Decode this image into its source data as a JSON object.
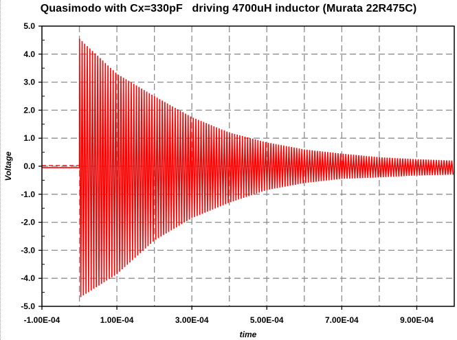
{
  "chart_data": {
    "type": "line",
    "title": "Quasimodo with Cx=330pF   driving 4700uH inductor (Murata 22R475C)",
    "xlabel": "time",
    "ylabel": "Voltage",
    "xlim": [
      -0.0001,
      0.001
    ],
    "ylim": [
      -5.0,
      5.0
    ],
    "x_ticks": [
      -0.0001,
      0.0001,
      0.0003,
      0.0005,
      0.0007,
      0.0009
    ],
    "x_tick_labels": [
      "-1.00E-04",
      "1.00E-04",
      "3.00E-04",
      "5.00E-04",
      "7.00E-04",
      "9.00E-04"
    ],
    "y_ticks": [
      5.0,
      4.0,
      3.0,
      2.0,
      1.0,
      0.0,
      -1.0,
      -2.0,
      -3.0,
      -4.0,
      -5.0
    ],
    "y_tick_labels": [
      "5.0",
      "4.0",
      "3.0",
      "2.0",
      "1.0",
      "0.0",
      "-1.0",
      "-2.0",
      "-3.0",
      "-4.0",
      "-5.0"
    ],
    "grid": true,
    "legend": "none",
    "series": [
      {
        "color": "#ff0000",
        "baseline_before_pulse": -0.05,
        "pulse_start_time": 0.0,
        "oscillation_cycles": 145,
        "envelope": {
          "x": [
            0.0,
            0.0001,
            0.0002,
            0.0003,
            0.0004,
            0.0005,
            0.0006,
            0.0007,
            0.0008,
            0.0009,
            0.001
          ],
          "upper": [
            4.55,
            3.3,
            2.5,
            1.75,
            1.2,
            0.85,
            0.6,
            0.45,
            0.32,
            0.25,
            0.2
          ],
          "lower": [
            -4.7,
            -3.85,
            -2.65,
            -1.85,
            -1.3,
            -0.85,
            -0.6,
            -0.45,
            -0.4,
            -0.33,
            -0.3
          ]
        }
      }
    ]
  }
}
